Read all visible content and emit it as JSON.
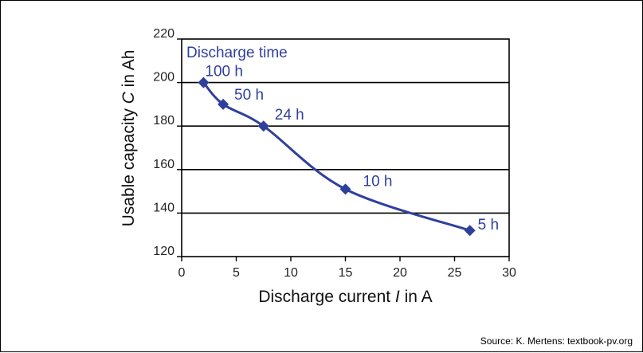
{
  "chart_data": {
    "type": "line",
    "legend_title": "Discharge time",
    "xlabel_parts": [
      "Discharge current ",
      "I",
      " in A"
    ],
    "ylabel_parts": [
      "Usable capacity ",
      "C",
      " in Ah"
    ],
    "xlim": [
      0,
      30
    ],
    "ylim": [
      120,
      220
    ],
    "x_ticks": [
      0,
      5,
      10,
      15,
      20,
      25,
      30
    ],
    "y_ticks": [
      120,
      140,
      160,
      180,
      200,
      220
    ],
    "grid": "horizontal",
    "series": [
      {
        "color": "#2f3f9e",
        "x": [
          2,
          3.8,
          7.5,
          15,
          26.4
        ],
        "y": [
          200,
          190,
          180,
          151,
          132
        ],
        "labels": [
          "100 h",
          "50 h",
          "24 h",
          "10 h",
          "5 h"
        ]
      }
    ]
  },
  "source_text": "Source: K. Mertens: textbook-pv.org"
}
